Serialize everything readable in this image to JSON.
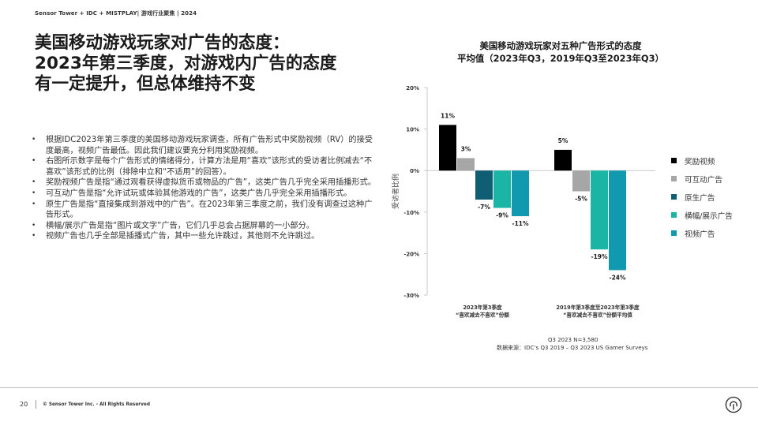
{
  "header": {
    "text": "Sensor Tower + IDC + MISTPLAY| 游戏行业聚焦 | 2024"
  },
  "title": {
    "lines": [
      "美国移动游戏玩家对广告的态度：",
      "2023年第三季度，对游戏内广告的态度",
      "有一定提升，但总体维持不变"
    ]
  },
  "bullets": [
    "根据IDC2023年第三季度的美国移动游戏玩家调查，所有广告形式中奖励视频（RV）的接受度最高，视频广告最低。因此我们建议要充分利用奖励视频。",
    "右图所示数字是每个广告形式的情绪得分，计算方法是用“喜欢”该形式的受访者比例减去“不喜欢”该形式的比例（排除中立和“不适用”的回答）。",
    "奖励视频广告是指“通过观看获得虚拟货币或物品的广告”，这类广告几乎完全采用插播形式。",
    "可互动广告是指“允许试玩或体验其他游戏的广告”，这类广告几乎完全采用插播形式。",
    "原生广告是指“直接集成到游戏中的广告”。在2023年第三季度之前，我们没有调查过这种广告形式。",
    "横幅/展示广告是指“图片或文字”广告，它们几乎总会占据屏幕的一小部分。",
    "视频广告也几乎全部是插播式广告，其中一些允许跳过，其他则不允许跳过。"
  ],
  "chart_data": {
    "type": "bar",
    "title": [
      "美国移动游戏玩家对五种广告形式的态度",
      "平均值（2023年Q3，2019年Q3至2023年Q3）"
    ],
    "ylabel": "受访者比例",
    "ylim": [
      -30,
      20
    ],
    "yticks": [
      20,
      10,
      0,
      -10,
      -20,
      -30
    ],
    "ytick_labels": [
      "20%",
      "10%",
      "0%",
      "-10%",
      "-20%",
      "-30%"
    ],
    "grid": false,
    "legend_position": "right",
    "categories": [
      [
        "2023年第3季度",
        "“喜欢减去不喜欢”份额"
      ],
      [
        "2019年第3季度至2023年第3季度",
        "“喜欢减去不喜欢”份额平均值"
      ]
    ],
    "series": [
      {
        "name": "奖励视频",
        "color": "#000000",
        "values": [
          11,
          5
        ],
        "labels": [
          "11%",
          "5%"
        ]
      },
      {
        "name": "可互动广告",
        "color": "#a6a6a6",
        "values": [
          3,
          -5
        ],
        "labels": [
          "3%",
          "-5%"
        ]
      },
      {
        "name": "原生广告",
        "color": "#0f5e73",
        "values": [
          -7,
          null
        ],
        "labels": [
          "-7%",
          ""
        ]
      },
      {
        "name": "横幅/展示广告",
        "color": "#1bb5a5",
        "values": [
          -9,
          -19
        ],
        "labels": [
          "-9%",
          "-19%"
        ]
      },
      {
        "name": "视频广告",
        "color": "#1199b0",
        "values": [
          -11,
          -24
        ],
        "labels": [
          "-11%",
          "-24%"
        ]
      }
    ]
  },
  "source": {
    "n_text": "Q3 2023 N=3,580",
    "source_text": "数据来源：IDC’s Q3 2019 – Q3 2023 US Gamer Surveys"
  },
  "footer": {
    "page_number": "20",
    "copyright": "© Sensor Tower Inc. - All Rights Reserved"
  },
  "logo": {
    "icon": "sensor-tower-logo-icon"
  }
}
